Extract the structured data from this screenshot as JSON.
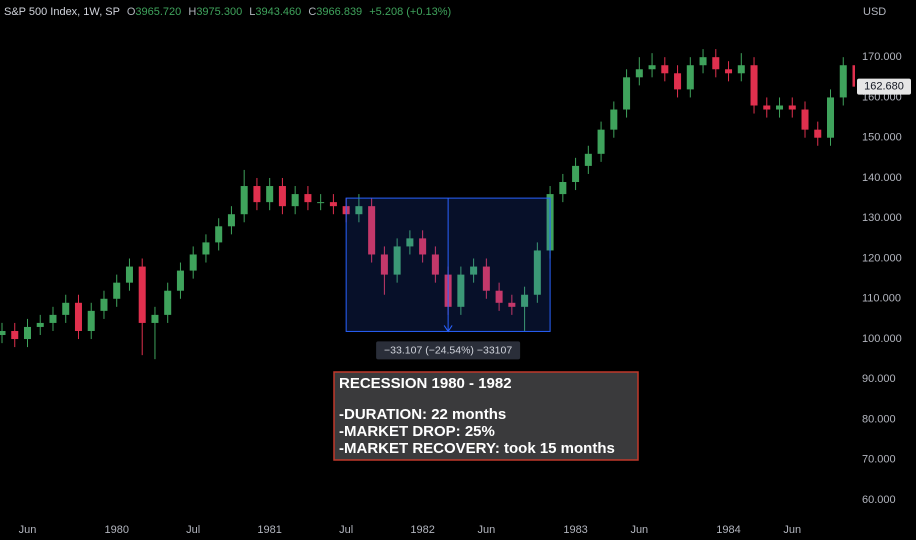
{
  "header": {
    "symbol": "S&P 500 Index, 1W, SP",
    "ohlc": [
      {
        "key": "O",
        "value": "3965.720"
      },
      {
        "key": "H",
        "value": "3975.300"
      },
      {
        "key": "L",
        "value": "3943.460"
      },
      {
        "key": "C",
        "value": "3966.839"
      }
    ],
    "change": "+5.208 (+0.13%)"
  },
  "chart_data": {
    "type": "candlestick",
    "currency": "USD",
    "x": [
      "1979-04",
      "1979-05",
      "1979-06",
      "1979-07",
      "1979-08",
      "1979-09",
      "1979-10",
      "1979-11",
      "1979-12",
      "1980-01",
      "1980-02",
      "1980-03",
      "1980-04",
      "1980-05",
      "1980-06",
      "1980-07",
      "1980-08",
      "1980-09",
      "1980-10",
      "1980-11",
      "1980-12",
      "1981-01",
      "1981-02",
      "1981-03",
      "1981-04",
      "1981-05",
      "1981-06",
      "1981-07",
      "1981-08",
      "1981-09",
      "1981-10",
      "1981-11",
      "1981-12",
      "1982-01",
      "1982-02",
      "1982-03",
      "1982-04",
      "1982-05",
      "1982-06",
      "1982-07",
      "1982-08",
      "1982-09",
      "1982-10",
      "1982-11",
      "1982-12",
      "1983-01",
      "1983-02",
      "1983-03",
      "1983-04",
      "1983-05",
      "1983-06",
      "1983-07",
      "1983-08",
      "1983-09",
      "1983-10",
      "1983-11",
      "1983-12",
      "1984-01",
      "1984-02",
      "1984-03",
      "1984-04",
      "1984-05",
      "1984-06",
      "1984-07",
      "1984-08",
      "1984-09",
      "1984-10",
      "1984-11"
    ],
    "open": [
      101,
      102,
      100,
      103,
      104,
      106,
      109,
      102,
      107,
      110,
      114,
      118,
      104,
      106,
      112,
      117,
      121,
      124,
      128,
      131,
      138,
      134,
      138,
      133,
      136,
      134,
      134,
      133,
      131,
      133,
      121,
      116,
      123,
      125,
      121,
      116,
      108,
      116,
      118,
      112,
      109,
      108,
      111,
      122,
      136,
      139,
      143,
      146,
      152,
      157,
      165,
      167,
      168,
      166,
      162,
      168,
      170,
      167,
      166,
      168,
      158,
      157,
      158,
      157,
      152,
      150,
      160,
      168
    ],
    "high": [
      104,
      104,
      105,
      106,
      108,
      111,
      111,
      109,
      112,
      116,
      120,
      120,
      108,
      114,
      119,
      123,
      126,
      130,
      133,
      142,
      140,
      140,
      140,
      138,
      138,
      136,
      136,
      135,
      136,
      135,
      123,
      125,
      127,
      127,
      123,
      118,
      118,
      120,
      120,
      114,
      111,
      113,
      124,
      138,
      141,
      145,
      148,
      154,
      159,
      167,
      170,
      171,
      170,
      168,
      170,
      172,
      172,
      169,
      171,
      170,
      160,
      160,
      160,
      159,
      154,
      162,
      170,
      170
    ],
    "low": [
      99,
      98,
      98,
      101,
      102,
      104,
      100,
      100,
      105,
      108,
      112,
      96,
      95,
      104,
      110,
      115,
      119,
      122,
      126,
      129,
      132,
      132,
      131,
      131,
      132,
      132,
      131,
      129,
      129,
      119,
      111,
      114,
      121,
      119,
      114,
      106,
      106,
      114,
      110,
      107,
      106,
      102,
      109,
      120,
      134,
      137,
      141,
      144,
      150,
      155,
      163,
      165,
      164,
      160,
      160,
      166,
      165,
      164,
      164,
      156,
      155,
      155,
      155,
      150,
      148,
      148,
      158,
      160
    ],
    "close": [
      102,
      100,
      103,
      104,
      106,
      109,
      102,
      107,
      110,
      114,
      118,
      104,
      106,
      112,
      117,
      121,
      124,
      128,
      131,
      138,
      134,
      138,
      133,
      136,
      134,
      134,
      133,
      131,
      133,
      121,
      116,
      123,
      125,
      121,
      116,
      108,
      116,
      118,
      112,
      109,
      108,
      111,
      122,
      136,
      139,
      143,
      146,
      152,
      157,
      165,
      167,
      168,
      166,
      162,
      168,
      170,
      167,
      166,
      168,
      158,
      157,
      158,
      157,
      152,
      150,
      160,
      168,
      162.68
    ],
    "up_color": "#3fa35c",
    "down_color": "#e0304e",
    "xlim": [
      "1979-04",
      "1984-11"
    ],
    "xticks": [
      {
        "value": "1979-06",
        "label": "Jun"
      },
      {
        "value": "1980-01",
        "label": "1980"
      },
      {
        "value": "1980-07",
        "label": "Jul"
      },
      {
        "value": "1981-01",
        "label": "1981"
      },
      {
        "value": "1981-07",
        "label": "Jul"
      },
      {
        "value": "1982-01",
        "label": "1982"
      },
      {
        "value": "1982-06",
        "label": "Jun"
      },
      {
        "value": "1983-01",
        "label": "1983"
      },
      {
        "value": "1983-06",
        "label": "Jun"
      },
      {
        "value": "1984-01",
        "label": "1984"
      },
      {
        "value": "1984-06",
        "label": "Jun"
      }
    ],
    "ylim": [
      56.3,
      184.2
    ],
    "yticks": [
      {
        "value": 60,
        "label": "60.000"
      },
      {
        "value": 70,
        "label": "70.000"
      },
      {
        "value": 80,
        "label": "80.000"
      },
      {
        "value": 90,
        "label": "90.000"
      },
      {
        "value": 100,
        "label": "100.000"
      },
      {
        "value": 110,
        "label": "110.000"
      },
      {
        "value": 120,
        "label": "120.000"
      },
      {
        "value": 130,
        "label": "130.000"
      },
      {
        "value": 140,
        "label": "140.000"
      },
      {
        "value": 150,
        "label": "150.000"
      },
      {
        "value": 160,
        "label": "160.000"
      },
      {
        "value": 170,
        "label": "170.000"
      }
    ],
    "last_price": {
      "value": 162.68,
      "label": "162.680"
    },
    "measure": {
      "from_x": "1981-07",
      "to_x": "1982-11",
      "from": 135,
      "to": 101.89,
      "label": "−33.107 (−24.54%) −33107"
    },
    "annotation": {
      "title": "RECESSION 1980 - 1982",
      "lines": [
        "-DURATION: 22 months",
        "-MARKET DROP: 25%",
        "-MARKET RECOVERY: took 15 months"
      ]
    }
  }
}
